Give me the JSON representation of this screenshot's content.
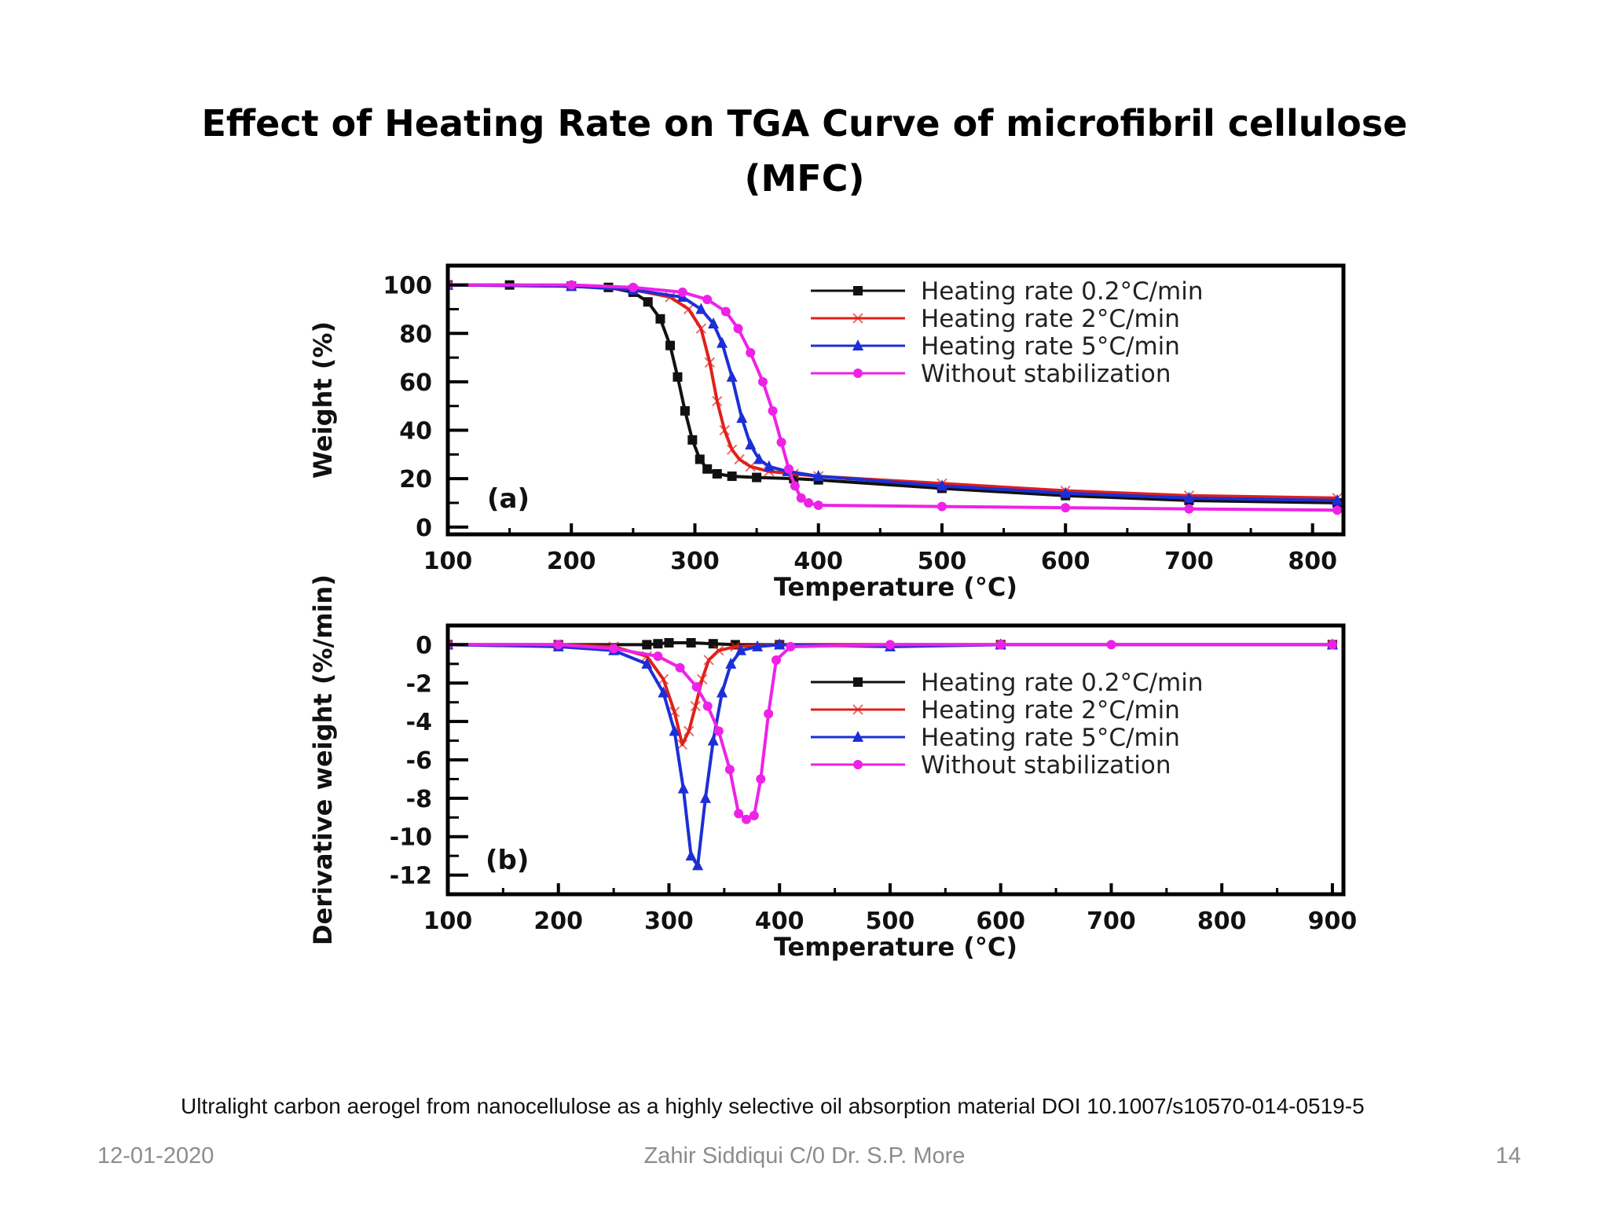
{
  "slide": {
    "title_line1": "Effect of Heating Rate on TGA Curve of  microfibril cellulose",
    "title_line2": "(MFC)",
    "citation": "Ultralight carbon aerogel from nanocellulose as a highly selective oil absorption material DOI 10.1007/s10570-014-0519-5",
    "footer_date": "12-01-2020",
    "footer_author": "Zahir Siddiqui C/0 Dr. S.P. More",
    "page_number": "14"
  },
  "chart_data": [
    {
      "type": "line",
      "panel_label": "(a)",
      "xlabel": "Temperature (°C)",
      "ylabel": "Weight (%)",
      "xlim": [
        100,
        825
      ],
      "ylim": [
        -3,
        108
      ],
      "xticks": [
        100,
        200,
        300,
        400,
        500,
        600,
        700,
        800
      ],
      "yticks": [
        0,
        20,
        40,
        60,
        80,
        100
      ],
      "legend_position": "top-right",
      "grid": false,
      "series": [
        {
          "name": "Heating rate 0.2°C/min",
          "color": "#111111",
          "marker": "square",
          "x": [
            100,
            150,
            200,
            230,
            250,
            262,
            272,
            280,
            286,
            292,
            298,
            304,
            310,
            318,
            330,
            350,
            380,
            400,
            500,
            600,
            700,
            820
          ],
          "y": [
            100,
            100,
            99.5,
            99,
            97,
            93,
            86,
            75,
            62,
            48,
            36,
            28,
            24,
            22,
            21,
            20.5,
            20,
            19.5,
            16,
            13,
            11,
            10
          ]
        },
        {
          "name": "Heating rate 2°C/min",
          "color": "#e0201a",
          "marker": "cross",
          "x": [
            100,
            200,
            250,
            280,
            295,
            305,
            312,
            318,
            324,
            330,
            336,
            345,
            360,
            380,
            400,
            500,
            600,
            700,
            820
          ],
          "y": [
            100,
            99.5,
            98,
            95,
            90,
            82,
            68,
            52,
            40,
            32,
            28,
            25,
            23,
            22,
            21,
            18,
            15,
            13,
            12
          ]
        },
        {
          "name": "Heating rate 5°C/min",
          "color": "#1c2fd6",
          "marker": "triangle",
          "x": [
            100,
            200,
            250,
            290,
            305,
            315,
            322,
            330,
            338,
            345,
            352,
            360,
            375,
            400,
            500,
            600,
            700,
            820
          ],
          "y": [
            100,
            99.5,
            98,
            95,
            90,
            84,
            76,
            62,
            45,
            34,
            28,
            25,
            23,
            21,
            17,
            14,
            12,
            11
          ]
        },
        {
          "name": "Without stabilization",
          "color": "#ee22e6",
          "marker": "diamond",
          "x": [
            100,
            200,
            250,
            290,
            310,
            325,
            335,
            345,
            355,
            363,
            370,
            376,
            381,
            386,
            392,
            400,
            500,
            600,
            700,
            820
          ],
          "y": [
            100,
            100,
            99,
            97,
            94,
            89,
            82,
            72,
            60,
            48,
            35,
            24,
            17,
            12,
            10,
            9,
            8.5,
            8,
            7.5,
            7
          ]
        }
      ]
    },
    {
      "type": "line",
      "panel_label": "(b)",
      "xlabel": "Temperature (°C)",
      "ylabel": "Derivative weight (%/min)",
      "xlim": [
        100,
        910
      ],
      "ylim": [
        -13,
        1
      ],
      "xticks": [
        100,
        200,
        300,
        400,
        500,
        600,
        700,
        800,
        900
      ],
      "yticks": [
        0,
        -2,
        -4,
        -6,
        -8,
        -10,
        -12
      ],
      "legend_position": "center-right",
      "grid": false,
      "series": [
        {
          "name": "Heating rate 0.2°C/min",
          "color": "#111111",
          "marker": "square",
          "x": [
            100,
            200,
            280,
            290,
            300,
            320,
            340,
            360,
            400,
            600,
            900
          ],
          "y": [
            0,
            0,
            0,
            0.05,
            0.1,
            0.1,
            0.05,
            0,
            0,
            0,
            0
          ]
        },
        {
          "name": "Heating rate 2°C/min",
          "color": "#e0201a",
          "marker": "cross",
          "x": [
            100,
            200,
            250,
            280,
            295,
            305,
            312,
            318,
            324,
            330,
            336,
            345,
            360,
            400,
            600,
            900
          ],
          "y": [
            0,
            0,
            -0.1,
            -0.6,
            -1.8,
            -3.5,
            -5.2,
            -4.5,
            -3.2,
            -1.8,
            -0.8,
            -0.3,
            -0.1,
            0,
            0,
            0
          ]
        },
        {
          "name": "Heating rate 5°C/min",
          "color": "#1c2fd6",
          "marker": "triangle",
          "x": [
            100,
            200,
            250,
            280,
            295,
            305,
            313,
            320,
            326,
            333,
            340,
            348,
            356,
            365,
            380,
            400,
            500,
            600,
            900
          ],
          "y": [
            0,
            -0.1,
            -0.3,
            -1,
            -2.5,
            -4.5,
            -7.5,
            -11,
            -11.5,
            -8,
            -5,
            -2.5,
            -1,
            -0.3,
            -0.1,
            0,
            -0.1,
            0,
            0
          ]
        },
        {
          "name": "Without stabilization",
          "color": "#ee22e6",
          "marker": "diamond",
          "x": [
            100,
            200,
            250,
            290,
            310,
            325,
            335,
            345,
            355,
            363,
            370,
            377,
            383,
            390,
            397,
            410,
            500,
            600,
            700,
            900
          ],
          "y": [
            0,
            0,
            -0.2,
            -0.6,
            -1.2,
            -2.2,
            -3.2,
            -4.5,
            -6.5,
            -8.8,
            -9.1,
            -8.9,
            -7,
            -3.6,
            -0.8,
            -0.1,
            0,
            0,
            0,
            0
          ]
        }
      ]
    }
  ]
}
